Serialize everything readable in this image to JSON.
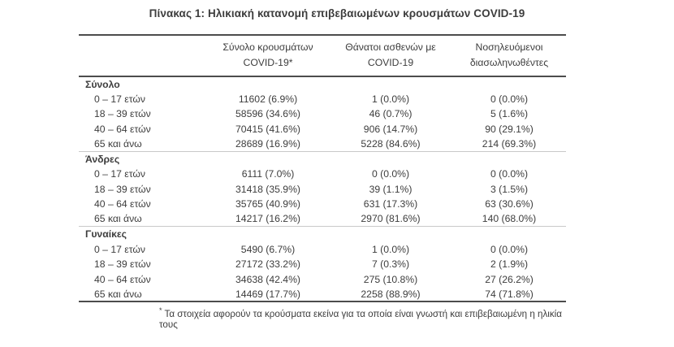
{
  "title": "Πίνακας 1: Ηλικιακή κατανομή επιβεβαιωμένων κρουσμάτων COVID-19",
  "colors": {
    "background": "#ffffff",
    "text": "#3d3d3d",
    "border_dark": "#4c4c4c",
    "border_light": "#c9c9c9"
  },
  "table": {
    "columns": [
      {
        "line1": "",
        "line2": ""
      },
      {
        "line1": "Σύνολο κρουσμάτων",
        "line2": "COVID-19*"
      },
      {
        "line1": "Θάνατοι ασθενών με",
        "line2": "COVID-19"
      },
      {
        "line1": "Νοσηλευόμενοι",
        "line2": "διασωληνωθέντες"
      }
    ],
    "sections": [
      {
        "label": "Σύνολο",
        "rows": [
          {
            "age": "0 – 17 ετών",
            "cases": "11602 (6.9%)",
            "deaths": "1 (0.0%)",
            "intubated": "0 (0.0%)"
          },
          {
            "age": "18 – 39 ετών",
            "cases": "58596 (34.6%)",
            "deaths": "46 (0.7%)",
            "intubated": "5 (1.6%)"
          },
          {
            "age": "40 – 64 ετών",
            "cases": "70415 (41.6%)",
            "deaths": "906 (14.7%)",
            "intubated": "90 (29.1%)"
          },
          {
            "age": "65 και άνω",
            "cases": "28689 (16.9%)",
            "deaths": "5228 (84.6%)",
            "intubated": "214 (69.3%)"
          }
        ]
      },
      {
        "label": "Άνδρες",
        "rows": [
          {
            "age": "0 – 17 ετών",
            "cases": "6111 (7.0%)",
            "deaths": "0 (0.0%)",
            "intubated": "0 (0.0%)"
          },
          {
            "age": "18 – 39 ετών",
            "cases": "31418 (35.9%)",
            "deaths": "39 (1.1%)",
            "intubated": "3 (1.5%)"
          },
          {
            "age": "40 – 64 ετών",
            "cases": "35765 (40.9%)",
            "deaths": "631 (17.3%)",
            "intubated": "63 (30.6%)"
          },
          {
            "age": "65 και άνω",
            "cases": "14217 (16.2%)",
            "deaths": "2970 (81.6%)",
            "intubated": "140 (68.0%)"
          }
        ]
      },
      {
        "label": "Γυναίκες",
        "rows": [
          {
            "age": "0 – 17 ετών",
            "cases": "5490 (6.7%)",
            "deaths": "1 (0.0%)",
            "intubated": "0 (0.0%)"
          },
          {
            "age": "18 – 39 ετών",
            "cases": "27172 (33.2%)",
            "deaths": "7 (0.3%)",
            "intubated": "2 (1.9%)"
          },
          {
            "age": "40 – 64 ετών",
            "cases": "34638 (42.4%)",
            "deaths": "275 (10.8%)",
            "intubated": "27 (26.2%)"
          },
          {
            "age": "65 και άνω",
            "cases": "14469 (17.7%)",
            "deaths": "2258 (88.9%)",
            "intubated": "74 (71.8%)"
          }
        ]
      }
    ],
    "footnote_marker": "*",
    "footnote": "Τα στοιχεία αφορούν τα κρούσματα εκείνα για τα οποία είναι γνωστή και επιβεβαιωμένη η ηλικία τους"
  }
}
